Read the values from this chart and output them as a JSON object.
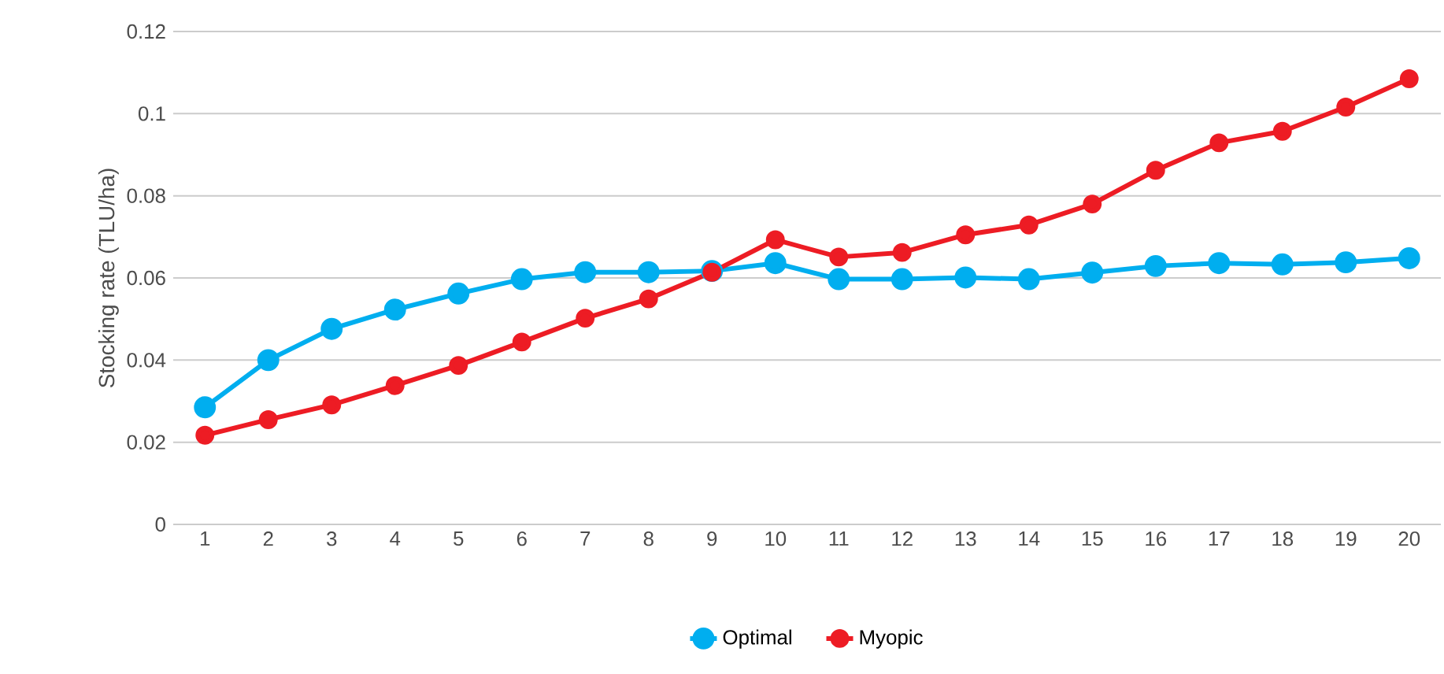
{
  "chart_data": {
    "type": "line",
    "ylabel": "Stocking rate (TLU/ha)",
    "categories": [
      "1",
      "2",
      "3",
      "4",
      "5",
      "6",
      "7",
      "8",
      "9",
      "10",
      "11",
      "12",
      "13",
      "14",
      "15",
      "16",
      "17",
      "18",
      "19",
      "20"
    ],
    "series": [
      {
        "name": "Optimal",
        "color": "#00aeef",
        "values": [
          0.0285,
          0.04,
          0.0476,
          0.0523,
          0.0562,
          0.0597,
          0.0614,
          0.0614,
          0.0617,
          0.0636,
          0.0597,
          0.0597,
          0.0601,
          0.0597,
          0.0613,
          0.0629,
          0.0636,
          0.0633,
          0.0638,
          0.0648
        ]
      },
      {
        "name": "Myopic",
        "color": "#ed1c24",
        "values": [
          0.0217,
          0.0255,
          0.0291,
          0.0338,
          0.0387,
          0.0444,
          0.0502,
          0.0549,
          0.0614,
          0.0693,
          0.0651,
          0.0662,
          0.0705,
          0.0729,
          0.078,
          0.0862,
          0.0929,
          0.0957,
          0.1016,
          0.1085
        ]
      }
    ],
    "ylim": [
      0,
      0.12
    ],
    "yticks": [
      0,
      0.02,
      0.04,
      0.06,
      0.08,
      0.1,
      0.12
    ],
    "grid": "y",
    "legend": "bottom",
    "marker": "circle",
    "line_style": "solid"
  }
}
